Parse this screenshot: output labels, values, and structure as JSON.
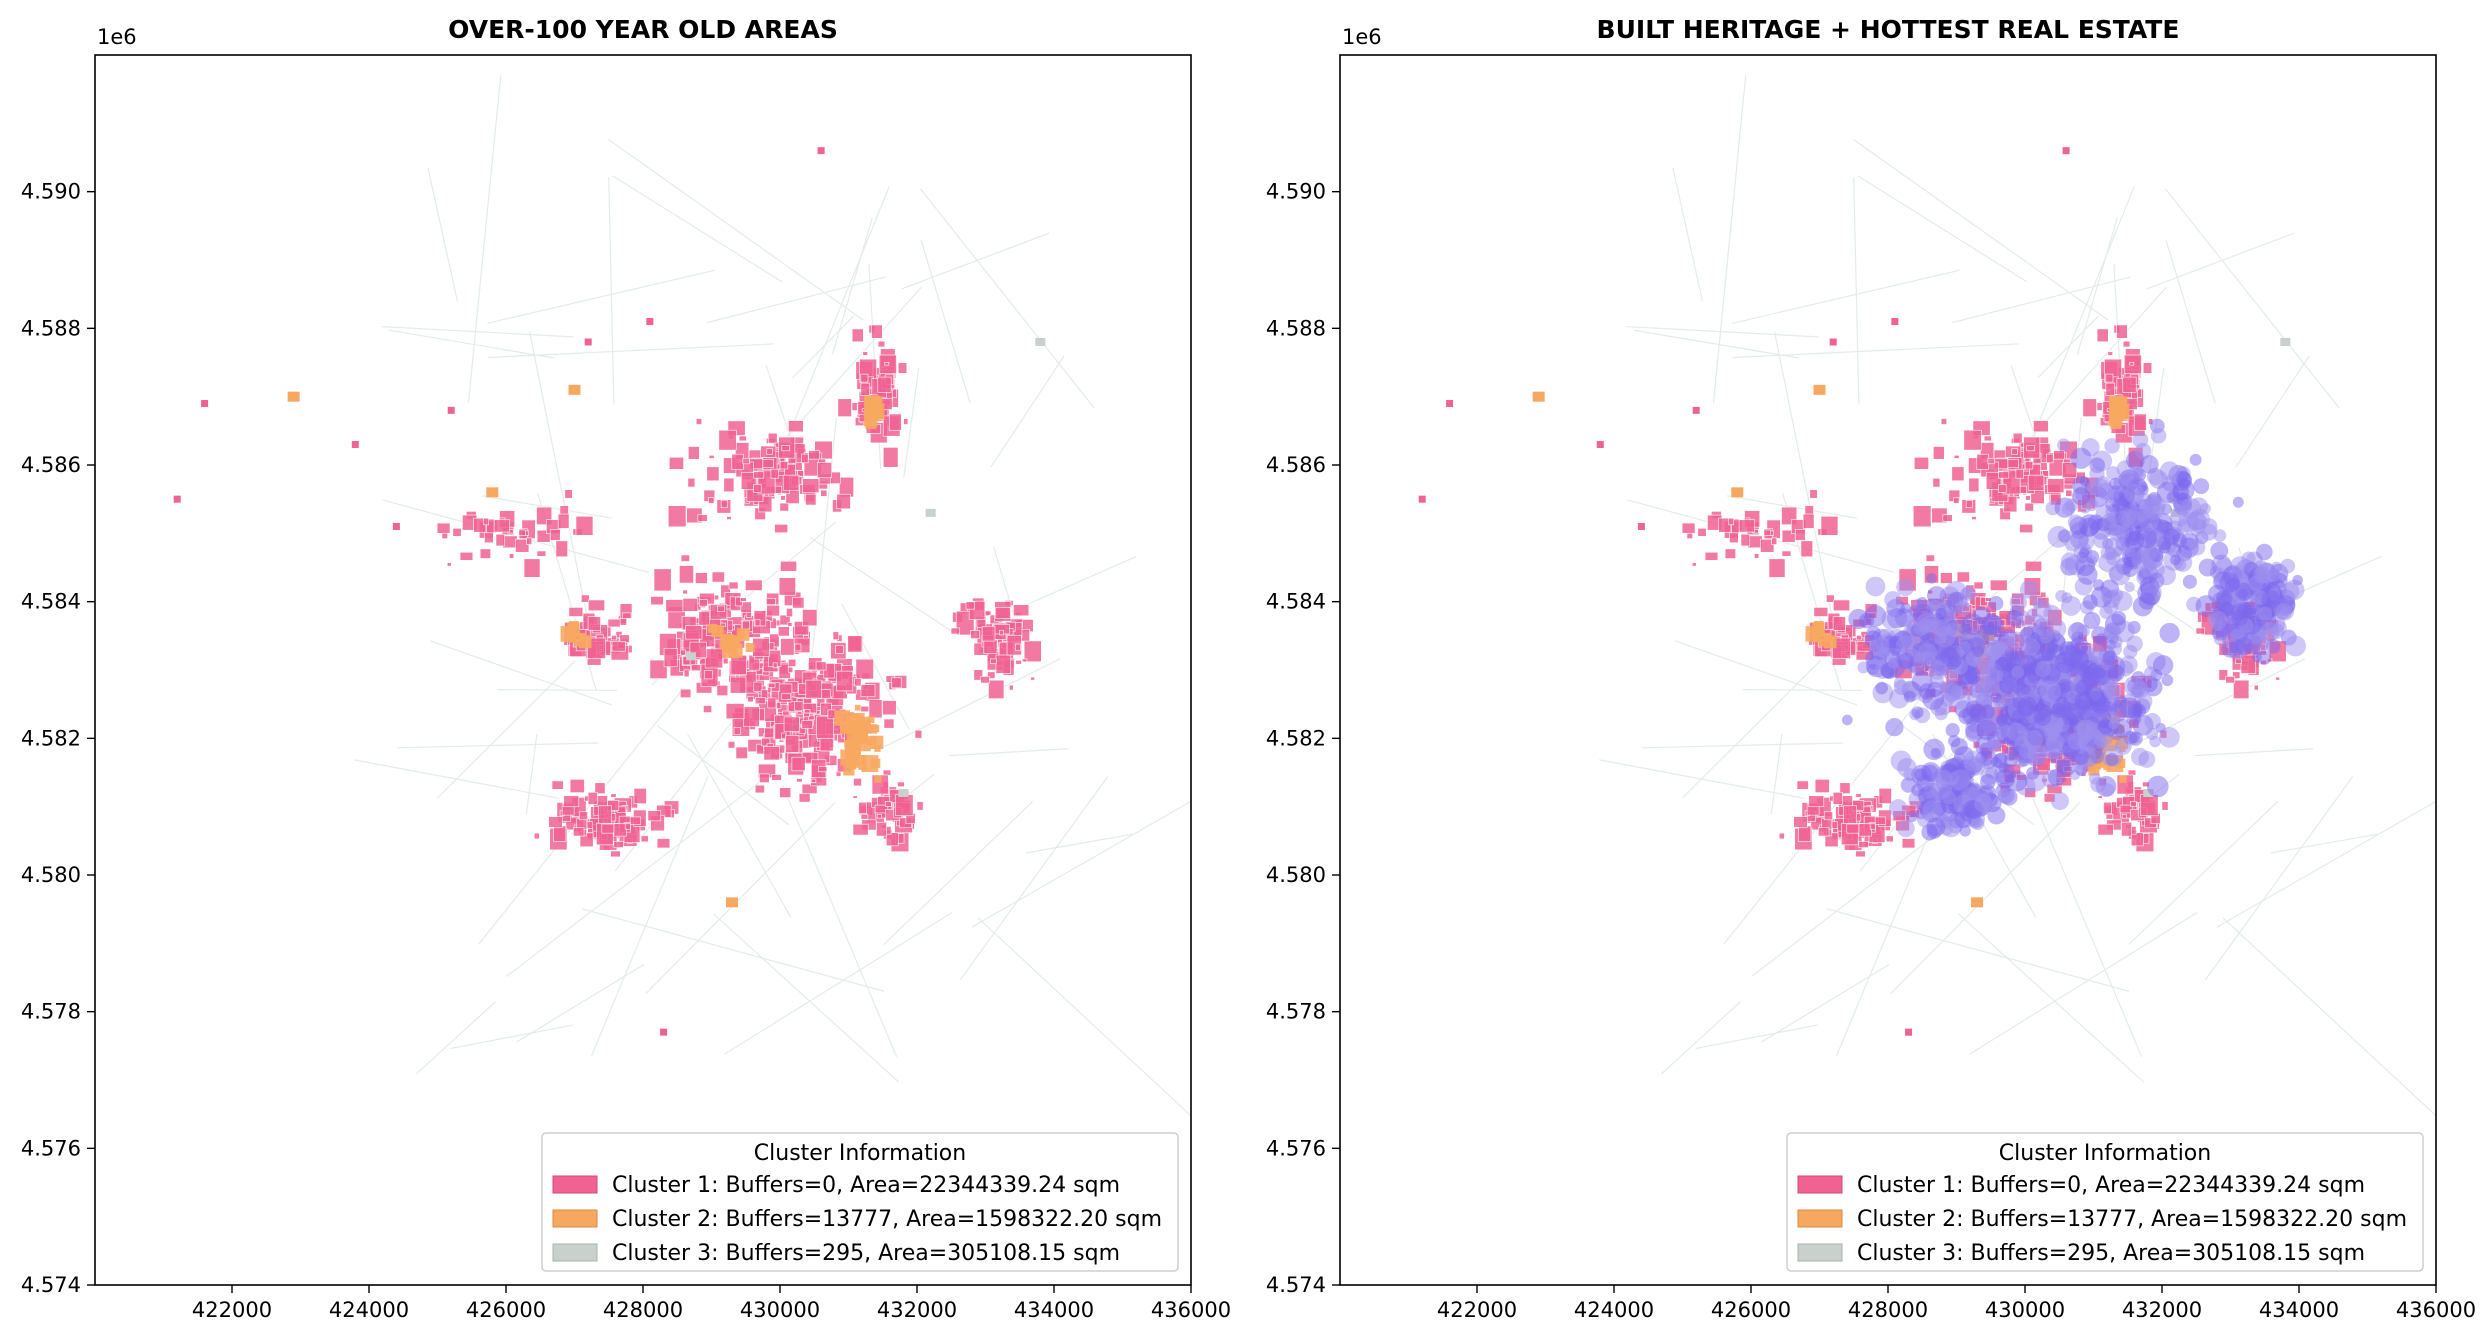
{
  "figure": {
    "panels": [
      {
        "id": "left",
        "title": "OVER-100 YEAR OLD AREAS",
        "y_offset_label": "1e6",
        "show_hotspots": false
      },
      {
        "id": "right",
        "title": "BUILT HERITAGE + HOTTEST REAL ESTATE",
        "y_offset_label": "1e6",
        "show_hotspots": true
      }
    ],
    "legend": {
      "title": "Cluster Information",
      "entries": [
        {
          "label": "Cluster 1: Buffers=0, Area=22344339.24 sqm",
          "color": "#f06292"
        },
        {
          "label": "Cluster 2: Buffers=13777, Area=1598322.20 sqm",
          "color": "#f7a860"
        },
        {
          "label": "Cluster 3: Buffers=295, Area=305108.15 sqm",
          "color": "#c9d1cc"
        }
      ],
      "placement": "lower-right"
    }
  },
  "chart_data": [
    {
      "type": "scatter",
      "title": "OVER-100 YEAR OLD AREAS",
      "xlim": [
        420000,
        436000
      ],
      "ylim": [
        4.574,
        4.592
      ],
      "y_scale_offset": "1e6",
      "x_ticks": [
        "422000",
        "424000",
        "426000",
        "428000",
        "430000",
        "432000",
        "434000",
        "436000"
      ],
      "y_ticks": [
        "4.574",
        "4.576",
        "4.578",
        "4.580",
        "4.582",
        "4.584",
        "4.586",
        "4.588",
        "4.590"
      ],
      "series": [
        {
          "name": "Cluster 1: Buffers=0, Area=22344339.24 sqm",
          "color": "#f06292"
        },
        {
          "name": "Cluster 2: Buffers=13777, Area=1598322.20 sqm",
          "color": "#f7a860"
        },
        {
          "name": "Cluster 3: Buffers=295, Area=305108.15 sqm",
          "color": "#c9d1cc"
        }
      ]
    },
    {
      "type": "scatter",
      "title": "BUILT HERITAGE + HOTTEST REAL ESTATE",
      "xlim": [
        420000,
        436000
      ],
      "ylim": [
        4.574,
        4.592
      ],
      "y_scale_offset": "1e6",
      "x_ticks": [
        "422000",
        "424000",
        "426000",
        "428000",
        "430000",
        "432000",
        "434000",
        "436000"
      ],
      "y_ticks": [
        "4.574",
        "4.576",
        "4.578",
        "4.580",
        "4.582",
        "4.584",
        "4.586",
        "4.588",
        "4.590"
      ],
      "series": [
        {
          "name": "Cluster 1: Buffers=0, Area=22344339.24 sqm",
          "color": "#f06292"
        },
        {
          "name": "Cluster 2: Buffers=13777, Area=1598322.20 sqm",
          "color": "#f7a860"
        },
        {
          "name": "Cluster 3: Buffers=295, Area=305108.15 sqm",
          "color": "#c9d1cc"
        }
      ]
    }
  ]
}
